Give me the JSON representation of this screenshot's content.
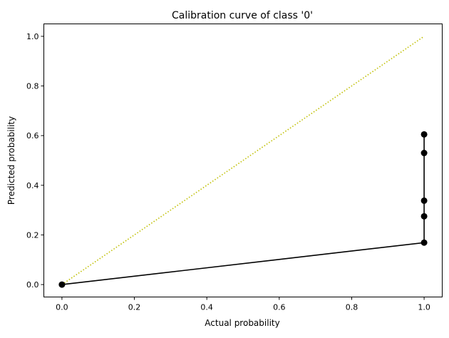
{
  "chart_data": {
    "type": "line",
    "title": "Calibration curve of class '0'",
    "xlabel": "Actual probability",
    "ylabel": "Predicted probability",
    "xlim": [
      -0.05,
      1.05
    ],
    "ylim": [
      -0.05,
      1.05
    ],
    "xticks": [
      0.0,
      0.2,
      0.4,
      0.6,
      0.8,
      1.0
    ],
    "yticks": [
      0.0,
      0.2,
      0.4,
      0.6,
      0.8,
      1.0
    ],
    "xtick_labels": [
      "0.0",
      "0.2",
      "0.4",
      "0.6",
      "0.8",
      "1.0"
    ],
    "ytick_labels": [
      "0.0",
      "0.2",
      "0.4",
      "0.6",
      "0.8",
      "1.0"
    ],
    "grid": false,
    "series": [
      {
        "style": "dotted",
        "color": "#bfbf00",
        "x": [
          0,
          1
        ],
        "y": [
          0,
          1
        ]
      },
      {
        "style": "solid-marker",
        "color": "#000000",
        "x": [
          0,
          1,
          1,
          1,
          1,
          1
        ],
        "y": [
          0.0,
          0.169,
          0.275,
          0.338,
          0.53,
          0.605
        ]
      }
    ]
  }
}
